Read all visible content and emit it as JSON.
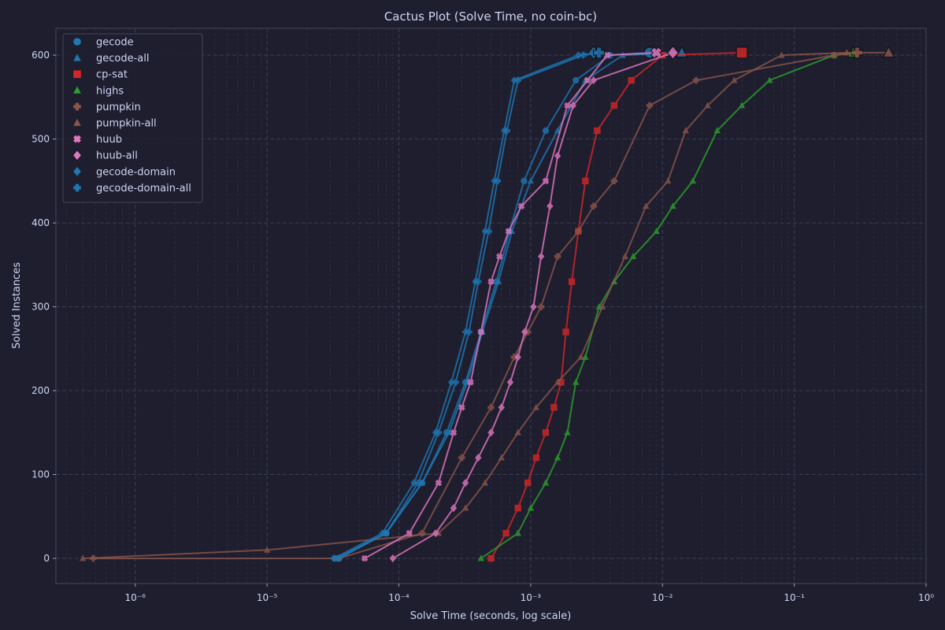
{
  "chart_data": {
    "type": "line",
    "title": "Cactus Plot (Solve Time, no coin-bc)",
    "xlabel": "Solve Time (seconds, log scale)",
    "ylabel": "Solved Instances",
    "xscale": "log",
    "xlim": [
      2.5e-07,
      1.0
    ],
    "ylim": [
      -30,
      632
    ],
    "grid": true,
    "legend_position": "top-left",
    "x_ticks": [
      {
        "value": 1e-06,
        "label": "10⁻⁶"
      },
      {
        "value": 1e-05,
        "label": "10⁻⁵"
      },
      {
        "value": 0.0001,
        "label": "10⁻⁴"
      },
      {
        "value": 0.001,
        "label": "10⁻³"
      },
      {
        "value": 0.01,
        "label": "10⁻²"
      },
      {
        "value": 0.1,
        "label": "10⁻¹"
      },
      {
        "value": 1,
        "label": "10⁰"
      }
    ],
    "y_ticks": [
      0,
      100,
      200,
      300,
      400,
      500,
      600
    ],
    "background": "#1e1e2e",
    "plot_background": "#1e1e2e",
    "text_color": "#cdd6f4",
    "series": [
      {
        "name": "gecode",
        "color": "#1f77b4",
        "marker": "circle",
        "alpha": 0.8,
        "x": [
          3.3e-05,
          8e-05,
          0.00015,
          0.00023,
          0.00032,
          0.00042,
          0.00055,
          0.00069,
          0.00089,
          0.0013,
          0.0022,
          0.004,
          0.008
        ],
        "y": [
          0,
          30,
          90,
          150,
          210,
          270,
          330,
          390,
          450,
          510,
          570,
          600,
          603
        ]
      },
      {
        "name": "gecode-all",
        "color": "#1f77b4",
        "marker": "triangle",
        "alpha": 0.8,
        "x": [
          3.5e-05,
          8e-05,
          0.00015,
          0.00024,
          0.00033,
          0.00043,
          0.00057,
          0.00072,
          0.001,
          0.0016,
          0.0026,
          0.005,
          0.014
        ],
        "y": [
          0,
          30,
          90,
          150,
          210,
          270,
          330,
          390,
          450,
          510,
          570,
          600,
          603
        ]
      },
      {
        "name": "cp-sat",
        "color": "#d62728",
        "marker": "square",
        "alpha": 0.8,
        "x": [
          0.0005,
          0.00065,
          0.0008,
          0.00095,
          0.0011,
          0.0013,
          0.0015,
          0.0017,
          0.00185,
          0.00205,
          0.0023,
          0.0026,
          0.0032,
          0.0043,
          0.0058,
          0.01,
          0.04
        ],
        "y": [
          0,
          30,
          60,
          90,
          120,
          150,
          180,
          210,
          270,
          330,
          390,
          450,
          510,
          540,
          570,
          600,
          603
        ]
      },
      {
        "name": "highs",
        "color": "#2ca02c",
        "marker": "triangle",
        "alpha": 0.8,
        "x": [
          0.00042,
          0.0008,
          0.001,
          0.0013,
          0.0016,
          0.0019,
          0.0022,
          0.0026,
          0.0033,
          0.0043,
          0.006,
          0.009,
          0.012,
          0.017,
          0.026,
          0.04,
          0.065,
          0.2,
          0.28
        ],
        "y": [
          0,
          30,
          60,
          90,
          120,
          150,
          210,
          240,
          300,
          330,
          360,
          390,
          420,
          450,
          510,
          540,
          570,
          600,
          603
        ]
      },
      {
        "name": "pumpkin",
        "color": "#8c564b",
        "marker": "plus",
        "alpha": 0.8,
        "x": [
          4.8e-07,
          3.5e-05,
          0.00015,
          0.0003,
          0.0005,
          0.00075,
          0.00095,
          0.0012,
          0.0016,
          0.0023,
          0.003,
          0.0043,
          0.008,
          0.018,
          0.2,
          0.3
        ],
        "y": [
          0,
          0,
          30,
          120,
          180,
          240,
          270,
          300,
          360,
          390,
          420,
          450,
          540,
          570,
          600,
          603
        ]
      },
      {
        "name": "pumpkin-all",
        "color": "#8c564b",
        "marker": "triangle",
        "alpha": 0.8,
        "x": [
          4e-07,
          1e-05,
          0.0002,
          0.00032,
          0.00045,
          0.0006,
          0.0008,
          0.0011,
          0.0016,
          0.0024,
          0.0035,
          0.0052,
          0.0075,
          0.011,
          0.015,
          0.022,
          0.035,
          0.08,
          0.25,
          0.52
        ],
        "y": [
          0,
          10,
          30,
          60,
          90,
          120,
          150,
          180,
          210,
          240,
          300,
          360,
          420,
          450,
          510,
          540,
          570,
          600,
          603,
          603
        ]
      },
      {
        "name": "huub",
        "color": "#e377c2",
        "marker": "x",
        "alpha": 0.8,
        "x": [
          5.5e-05,
          0.00012,
          0.0002,
          0.00026,
          0.0003,
          0.00035,
          0.00042,
          0.0005,
          0.00058,
          0.00068,
          0.00085,
          0.0013,
          0.0019,
          0.0027,
          0.0038,
          0.009
        ],
        "y": [
          0,
          30,
          90,
          150,
          180,
          210,
          270,
          330,
          360,
          390,
          420,
          450,
          540,
          570,
          600,
          603
        ]
      },
      {
        "name": "huub-all",
        "color": "#e377c2",
        "marker": "diamond",
        "alpha": 0.8,
        "x": [
          9e-05,
          0.00019,
          0.00026,
          0.00032,
          0.0004,
          0.0005,
          0.0006,
          0.0007,
          0.0008,
          0.0009,
          0.00105,
          0.0012,
          0.0014,
          0.0016,
          0.0021,
          0.003,
          0.012
        ],
        "y": [
          0,
          30,
          60,
          90,
          120,
          150,
          180,
          210,
          240,
          270,
          300,
          360,
          420,
          480,
          540,
          570,
          603
        ]
      },
      {
        "name": "gecode-domain",
        "color": "#1f77b4",
        "marker": "diamond",
        "alpha": 0.8,
        "x": [
          3.2e-05,
          7.5e-05,
          0.00013,
          0.00019,
          0.00025,
          0.00032,
          0.00038,
          0.00045,
          0.00053,
          0.00063,
          0.00075,
          0.0023,
          0.003
        ],
        "y": [
          0,
          30,
          90,
          150,
          210,
          270,
          330,
          390,
          450,
          510,
          570,
          600,
          603
        ]
      },
      {
        "name": "gecode-domain-all",
        "color": "#1f77b4",
        "marker": "plus",
        "alpha": 0.8,
        "x": [
          3.5e-05,
          8e-05,
          0.00014,
          0.0002,
          0.00027,
          0.00034,
          0.0004,
          0.00048,
          0.00056,
          0.00066,
          0.0008,
          0.0025,
          0.0033
        ],
        "y": [
          0,
          30,
          90,
          150,
          210,
          270,
          330,
          390,
          450,
          510,
          570,
          600,
          603
        ]
      }
    ]
  }
}
